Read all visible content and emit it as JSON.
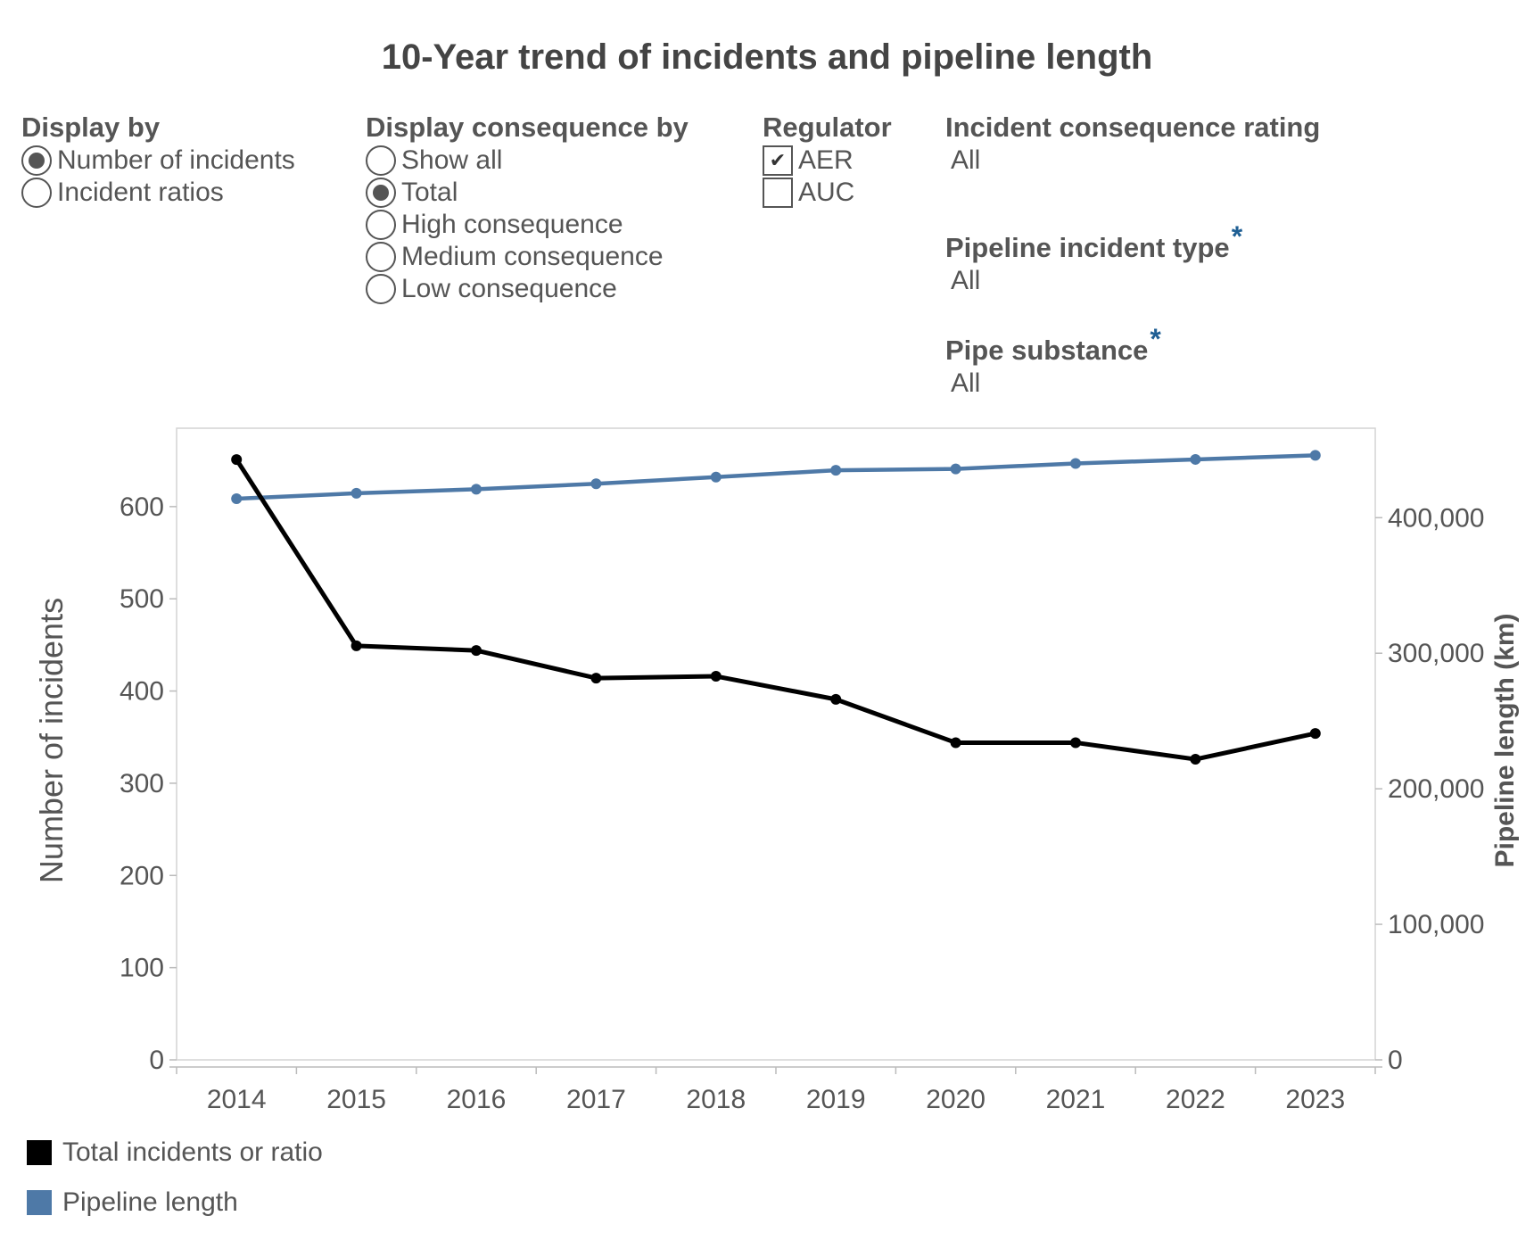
{
  "title": "10-Year trend of incidents and pipeline length",
  "display_by": {
    "label": "Display by",
    "options": [
      {
        "label": "Number of incidents",
        "selected": true
      },
      {
        "label": "Incident ratios",
        "selected": false
      }
    ]
  },
  "consequence": {
    "label": "Display consequence by",
    "options": [
      {
        "label": "Show all",
        "selected": false
      },
      {
        "label": "Total",
        "selected": true
      },
      {
        "label": "High consequence",
        "selected": false
      },
      {
        "label": "Medium consequence",
        "selected": false
      },
      {
        "label": "Low consequence",
        "selected": false
      }
    ]
  },
  "regulator": {
    "label": "Regulator",
    "options": [
      {
        "label": "AER",
        "checked": true
      },
      {
        "label": "AUC",
        "checked": false
      }
    ]
  },
  "filters": {
    "rating": {
      "label": "Incident consequence rating",
      "value": "All"
    },
    "incident_type": {
      "label": "Pipeline incident type",
      "star": "*",
      "value": "All"
    },
    "substance": {
      "label": "Pipe substance",
      "star": "*",
      "value": "All"
    }
  },
  "colors": {
    "incidents": "#000000",
    "pipeline": "#4e79a7",
    "star": "#1f5f94"
  },
  "chart_data": {
    "type": "line",
    "x": [
      "2014",
      "2015",
      "2016",
      "2017",
      "2018",
      "2019",
      "2020",
      "2021",
      "2022",
      "2023"
    ],
    "series": [
      {
        "name": "Total incidents or ratio",
        "axis": "left",
        "color": "#000000",
        "values": [
          651,
          449,
          444,
          414,
          416,
          391,
          344,
          344,
          326,
          354
        ]
      },
      {
        "name": "Pipeline length",
        "axis": "right",
        "color": "#4e79a7",
        "values": [
          414000,
          418000,
          421000,
          425000,
          430000,
          435000,
          436000,
          440000,
          443000,
          446000
        ]
      }
    ],
    "ylabel": "Number of incidents",
    "ylabel_right": "Pipeline length (km)",
    "ylim": [
      0,
      685
    ],
    "ylim_right": [
      0,
      466000
    ],
    "yticks": [
      "0",
      "100",
      "200",
      "300",
      "400",
      "500",
      "600"
    ],
    "yticks_right": [
      "0",
      "100,000",
      "200,000",
      "300,000",
      "400,000"
    ],
    "legend_position": "bottom-left",
    "grid": false
  }
}
